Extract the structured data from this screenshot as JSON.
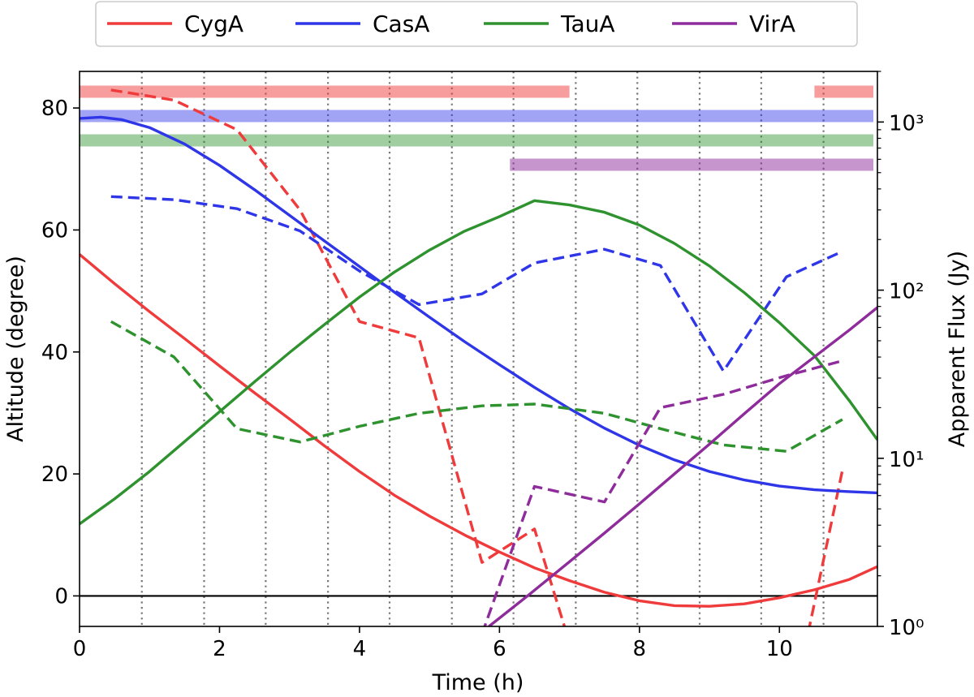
{
  "chart_data": {
    "type": "line",
    "xlabel": "Time (h)",
    "ylabel": "Altitude (degree)",
    "y2label": "Apparent Flux (Jy)",
    "xlim": [
      0,
      11.4
    ],
    "ylim": [
      -5,
      86
    ],
    "y2lim": [
      1,
      2000
    ],
    "y2scale": "log",
    "x_ticks": [
      0,
      2,
      4,
      6,
      8,
      10
    ],
    "x_tick_labels": [
      "0",
      "2",
      "4",
      "6",
      "8",
      "10"
    ],
    "y_ticks": [
      0,
      20,
      40,
      60,
      80
    ],
    "y_tick_labels": [
      "0",
      "20",
      "40",
      "60",
      "80"
    ],
    "y2_ticks": [
      1,
      10,
      100,
      1000
    ],
    "y2_tick_labels": [
      "10⁰",
      "10¹",
      "10²",
      "10³"
    ],
    "horizontal_line": 0,
    "vertical_markers": [
      0.89,
      1.78,
      2.66,
      3.55,
      4.43,
      5.32,
      6.2,
      7.09,
      7.97,
      8.86,
      9.74,
      10.63
    ],
    "legend": {
      "position": "top-center-outside",
      "columns": 4
    },
    "series": [
      {
        "name": "CygA",
        "color": "#ef3b3b",
        "altitude": [
          [
            0,
            56
          ],
          [
            0.5,
            51.2
          ],
          [
            1,
            46.6
          ],
          [
            1.5,
            42.2
          ],
          [
            2,
            37.7
          ],
          [
            2.5,
            33.3
          ],
          [
            3,
            29
          ],
          [
            3.5,
            24.6
          ],
          [
            4,
            20.4
          ],
          [
            4.5,
            16.5
          ],
          [
            5,
            13.1
          ],
          [
            5.5,
            10
          ],
          [
            6,
            7.2
          ],
          [
            6.5,
            4.6
          ],
          [
            7,
            2.5
          ],
          [
            7.5,
            0.6
          ],
          [
            8,
            -0.8
          ],
          [
            8.5,
            -1.6
          ],
          [
            9,
            -1.7
          ],
          [
            9.5,
            -1.3
          ],
          [
            10,
            -0.3
          ],
          [
            10.5,
            1
          ],
          [
            11,
            2.7
          ],
          [
            11.4,
            4.8
          ]
        ],
        "flux": [
          [
            0.45,
            1550
          ],
          [
            1.35,
            1350
          ],
          [
            2.25,
            900
          ],
          [
            3.15,
            300
          ],
          [
            4,
            65
          ],
          [
            4.85,
            52
          ],
          [
            5.75,
            2.4
          ],
          [
            6.5,
            3.8
          ],
          [
            7.0,
            0.8
          ],
          [
            10.2,
            0.35
          ],
          [
            10.9,
            8.5
          ]
        ],
        "visibility": [
          [
            0,
            7.0
          ],
          [
            10.5,
            11.4
          ]
        ]
      },
      {
        "name": "CasA",
        "color": "#2f36e8",
        "altitude": [
          [
            0,
            78.3
          ],
          [
            0.3,
            78.5
          ],
          [
            0.6,
            78.1
          ],
          [
            1,
            76.8
          ],
          [
            1.5,
            74.1
          ],
          [
            2,
            70.6
          ],
          [
            2.5,
            66.6
          ],
          [
            3,
            62.4
          ],
          [
            3.5,
            58.2
          ],
          [
            4,
            54
          ],
          [
            4.5,
            49.8
          ],
          [
            5,
            45.7
          ],
          [
            5.5,
            41.7
          ],
          [
            6,
            37.9
          ],
          [
            6.5,
            34.2
          ],
          [
            7,
            30.7
          ],
          [
            7.5,
            27.5
          ],
          [
            8,
            24.7
          ],
          [
            8.5,
            22.3
          ],
          [
            9,
            20.4
          ],
          [
            9.5,
            19
          ],
          [
            10,
            18
          ],
          [
            10.5,
            17.4
          ],
          [
            11,
            17.1
          ],
          [
            11.4,
            16.9
          ]
        ],
        "flux": [
          [
            0.45,
            360
          ],
          [
            1.35,
            345
          ],
          [
            2.25,
            305
          ],
          [
            3.15,
            225
          ],
          [
            4,
            130
          ],
          [
            4.85,
            82
          ],
          [
            5.75,
            95
          ],
          [
            6.5,
            145
          ],
          [
            7.5,
            175
          ],
          [
            8.3,
            140
          ],
          [
            9.2,
            33
          ],
          [
            10.1,
            120
          ],
          [
            10.9,
            170
          ]
        ],
        "visibility": [
          [
            0,
            11.4
          ]
        ]
      },
      {
        "name": "TauA",
        "color": "#2e922e",
        "altitude": [
          [
            0,
            11.8
          ],
          [
            0.5,
            15.9
          ],
          [
            1,
            20.4
          ],
          [
            1.5,
            25.3
          ],
          [
            2,
            30.2
          ],
          [
            2.5,
            35.1
          ],
          [
            3,
            39.9
          ],
          [
            3.5,
            44.5
          ],
          [
            4,
            49
          ],
          [
            4.5,
            53.1
          ],
          [
            5,
            56.7
          ],
          [
            5.5,
            59.8
          ],
          [
            6,
            62.2
          ],
          [
            6.5,
            64.8
          ],
          [
            7,
            64.1
          ],
          [
            7.5,
            62.9
          ],
          [
            8,
            60.8
          ],
          [
            8.5,
            57.8
          ],
          [
            9,
            54.1
          ],
          [
            9.5,
            49.7
          ],
          [
            10,
            44.8
          ],
          [
            10.5,
            39.4
          ],
          [
            11,
            32
          ],
          [
            11.4,
            25.6
          ]
        ],
        "flux": [
          [
            0.45,
            65
          ],
          [
            1.35,
            40
          ],
          [
            2.25,
            15
          ],
          [
            3.15,
            12.5
          ],
          [
            4,
            15.5
          ],
          [
            4.85,
            18.5
          ],
          [
            5.75,
            20.5
          ],
          [
            6.5,
            21
          ],
          [
            7.5,
            18.5
          ],
          [
            8.3,
            15
          ],
          [
            9.2,
            12
          ],
          [
            10.1,
            11
          ],
          [
            10.9,
            17
          ]
        ],
        "visibility": [
          [
            0,
            11.4
          ]
        ]
      },
      {
        "name": "VirA",
        "color": "#8e2c9b",
        "altitude": [
          [
            5.85,
            -5
          ],
          [
            6.4,
            0
          ],
          [
            7,
            5.6
          ],
          [
            7.5,
            10.3
          ],
          [
            8,
            15.1
          ],
          [
            8.5,
            20
          ],
          [
            9,
            24.9
          ],
          [
            9.5,
            29.9
          ],
          [
            10,
            34.8
          ],
          [
            10.5,
            39.2
          ],
          [
            11,
            43.6
          ],
          [
            11.4,
            47.3
          ]
        ],
        "flux": [
          [
            5.75,
            0.9
          ],
          [
            6.5,
            6.8
          ],
          [
            7.5,
            5.5
          ],
          [
            8.3,
            20
          ],
          [
            9.2,
            24
          ],
          [
            10.1,
            31
          ],
          [
            10.9,
            38
          ]
        ],
        "visibility": [
          [
            6.15,
            11.4
          ]
        ]
      }
    ]
  }
}
